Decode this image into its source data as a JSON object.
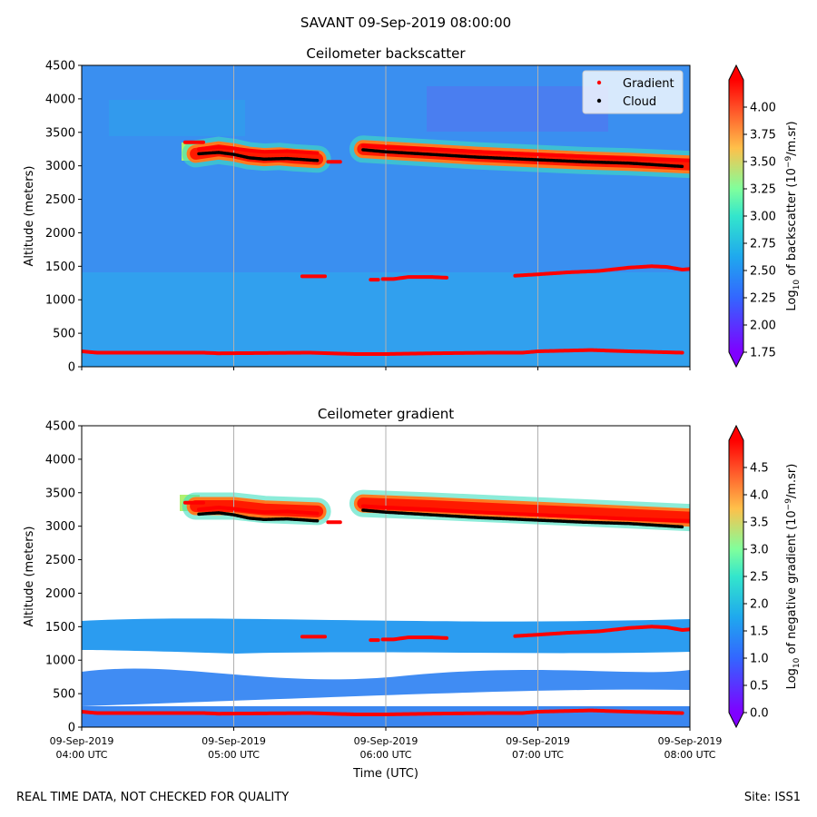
{
  "figure": {
    "suptitle": "SAVANT 09-Sep-2019 08:00:00",
    "footer_left": "REAL TIME DATA, NOT CHECKED FOR QUALITY",
    "footer_right": "Site: ISS1",
    "xlabel": "Time (UTC)"
  },
  "chart_data": [
    {
      "type": "heatmap",
      "title": "Ceilometer backscatter",
      "ylabel": "Altitude (meters)",
      "xlabel": "",
      "xlim": [
        0,
        4
      ],
      "ylim": [
        0,
        4500
      ],
      "x_ticks": [
        0,
        1,
        2,
        3,
        4
      ],
      "x_tick_labels": [],
      "y_ticks": [
        0,
        500,
        1000,
        1500,
        2000,
        2500,
        3000,
        3500,
        4000,
        4500
      ],
      "y_tick_labels": [
        "0",
        "500",
        "1000",
        "1500",
        "2000",
        "2500",
        "3000",
        "3500",
        "4000",
        "4500"
      ],
      "grid": "vertical lines at hourly ticks",
      "background_level": 2.3,
      "colorbar": {
        "label": "Log10 of backscatter (10⁻⁹/m.sr)",
        "label_main": "Log",
        "label_sub": "10",
        "label_rest": " of backscatter (10",
        "label_sup": "−9",
        "label_end": "/m.sr)",
        "min": 1.75,
        "max": 4.25,
        "ticks": [
          1.75,
          2.0,
          2.25,
          2.5,
          2.75,
          3.0,
          3.25,
          3.5,
          3.75,
          4.0
        ],
        "tick_labels": [
          "1.75",
          "2.00",
          "2.25",
          "2.50",
          "2.75",
          "3.00",
          "3.25",
          "3.50",
          "3.75",
          "4.00"
        ]
      },
      "legend": {
        "position": "top-right",
        "entries": [
          {
            "label": "Gradient",
            "color": "#ff0000"
          },
          {
            "label": "Cloud",
            "color": "#000000"
          }
        ]
      }
    },
    {
      "type": "heatmap",
      "title": "Ceilometer gradient",
      "ylabel": "Altitude (meters)",
      "xlabel": "Time (UTC)",
      "xlim": [
        0,
        4
      ],
      "ylim": [
        0,
        4500
      ],
      "x_ticks": [
        0,
        1,
        2,
        3,
        4
      ],
      "x_tick_labels": [
        [
          "09-Sep-2019",
          "04:00 UTC"
        ],
        [
          "09-Sep-2019",
          "05:00 UTC"
        ],
        [
          "09-Sep-2019",
          "06:00 UTC"
        ],
        [
          "09-Sep-2019",
          "07:00 UTC"
        ],
        [
          "09-Sep-2019",
          "08:00 UTC"
        ]
      ],
      "y_ticks": [
        0,
        500,
        1000,
        1500,
        2000,
        2500,
        3000,
        3500,
        4000,
        4500
      ],
      "y_tick_labels": [
        "0",
        "500",
        "1000",
        "1500",
        "2000",
        "2500",
        "3000",
        "3500",
        "4000",
        "4500"
      ],
      "grid": "vertical lines at hourly ticks",
      "colorbar": {
        "label": "Log10 of negative gradient (10⁻⁹/m.sr)",
        "label_main": "Log",
        "label_sub": "10",
        "label_rest": " of negative gradient (10",
        "label_sup": "−9",
        "label_end": "/m.sr)",
        "min": 0.0,
        "max": 5.0,
        "ticks": [
          0.0,
          0.5,
          1.0,
          1.5,
          2.0,
          2.5,
          3.0,
          3.5,
          4.0,
          4.5
        ],
        "tick_labels": [
          "0.0",
          "0.5",
          "1.0",
          "1.5",
          "2.0",
          "2.5",
          "3.0",
          "3.5",
          "4.0",
          "4.5"
        ]
      }
    }
  ],
  "series": {
    "cloud_layer_backscatter": [
      {
        "segment": [
          [
            0.75,
            3180
          ],
          [
            0.9,
            3230
          ],
          [
            1.0,
            3200
          ],
          [
            1.1,
            3150
          ],
          [
            1.2,
            3130
          ],
          [
            1.3,
            3140
          ],
          [
            1.4,
            3120
          ],
          [
            1.55,
            3100
          ]
        ]
      },
      {
        "segment": [
          [
            1.85,
            3250
          ],
          [
            2.0,
            3230
          ],
          [
            2.3,
            3190
          ],
          [
            2.6,
            3150
          ],
          [
            3.0,
            3110
          ],
          [
            3.3,
            3080
          ],
          [
            3.6,
            3060
          ],
          [
            4.0,
            3020
          ]
        ]
      }
    ],
    "cloud_points": [
      {
        "segment": [
          [
            0.77,
            3180
          ],
          [
            0.9,
            3200
          ],
          [
            1.0,
            3170
          ],
          [
            1.1,
            3120
          ],
          [
            1.2,
            3100
          ],
          [
            1.35,
            3110
          ],
          [
            1.55,
            3080
          ]
        ]
      },
      {
        "segment": [
          [
            1.85,
            3240
          ],
          [
            2.0,
            3210
          ],
          [
            2.3,
            3170
          ],
          [
            2.6,
            3130
          ],
          [
            3.0,
            3090
          ],
          [
            3.3,
            3060
          ],
          [
            3.6,
            3040
          ],
          [
            3.95,
            2990
          ]
        ]
      }
    ],
    "gradient_points": [
      {
        "segment": [
          [
            0.68,
            3350
          ],
          [
            0.8,
            3350
          ]
        ]
      },
      {
        "segment": [
          [
            0.77,
            3250
          ],
          [
            0.9,
            3280
          ],
          [
            1.0,
            3260
          ],
          [
            1.1,
            3230
          ],
          [
            1.2,
            3210
          ],
          [
            1.35,
            3220
          ],
          [
            1.55,
            3190
          ]
        ]
      },
      {
        "segment": [
          [
            1.62,
            3060
          ],
          [
            1.7,
            3060
          ]
        ]
      },
      {
        "segment": [
          [
            1.85,
            3300
          ],
          [
            2.0,
            3280
          ],
          [
            2.3,
            3250
          ],
          [
            2.6,
            3210
          ],
          [
            3.0,
            3170
          ],
          [
            3.3,
            3140
          ],
          [
            3.6,
            3110
          ],
          [
            4.0,
            3080
          ]
        ]
      },
      {
        "segment": [
          [
            1.45,
            1350
          ],
          [
            1.6,
            1350
          ]
        ]
      },
      {
        "segment": [
          [
            1.9,
            1300
          ],
          [
            1.95,
            1300
          ]
        ]
      },
      {
        "segment": [
          [
            1.98,
            1310
          ],
          [
            2.05,
            1310
          ],
          [
            2.15,
            1340
          ],
          [
            2.3,
            1340
          ],
          [
            2.4,
            1330
          ]
        ]
      },
      {
        "segment": [
          [
            2.85,
            1360
          ],
          [
            3.0,
            1380
          ],
          [
            3.2,
            1410
          ],
          [
            3.4,
            1430
          ],
          [
            3.6,
            1480
          ],
          [
            3.75,
            1500
          ],
          [
            3.85,
            1490
          ],
          [
            3.95,
            1450
          ],
          [
            4.0,
            1460
          ]
        ]
      },
      {
        "segment": [
          [
            0.0,
            230
          ],
          [
            0.1,
            210
          ],
          [
            0.4,
            210
          ],
          [
            0.8,
            210
          ],
          [
            0.9,
            200
          ],
          [
            1.5,
            210
          ],
          [
            1.8,
            190
          ],
          [
            2.0,
            190
          ],
          [
            2.3,
            200
          ],
          [
            2.7,
            210
          ],
          [
            2.9,
            210
          ],
          [
            3.0,
            230
          ],
          [
            3.35,
            250
          ],
          [
            3.6,
            230
          ],
          [
            3.95,
            210
          ]
        ]
      }
    ],
    "gradient_cloud_band": [
      {
        "segment": [
          [
            0.75,
            3300
          ],
          [
            1.0,
            3300
          ],
          [
            1.2,
            3250
          ],
          [
            1.55,
            3220
          ]
        ]
      },
      {
        "segment": [
          [
            1.85,
            3340
          ],
          [
            2.3,
            3300
          ],
          [
            2.8,
            3250
          ],
          [
            3.3,
            3200
          ],
          [
            4.0,
            3130
          ]
        ]
      }
    ]
  }
}
